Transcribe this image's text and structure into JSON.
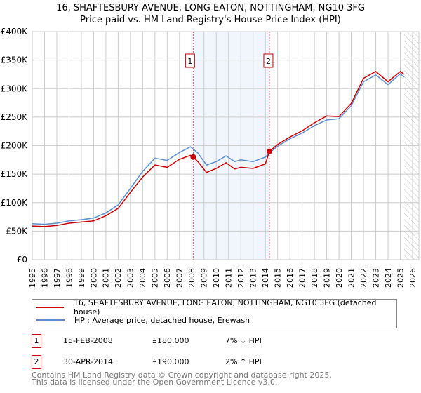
{
  "chart_data": {
    "type": "line",
    "title": "16, SHAFTESBURY AVENUE, LONG EATON, NOTTINGHAM, NG10 3FG",
    "subtitle": "Price paid vs. HM Land Registry's House Price Index (HPI)",
    "xlim": [
      1995,
      2026
    ],
    "ylim": [
      0,
      400000
    ],
    "yticks": [
      0,
      50000,
      100000,
      150000,
      200000,
      250000,
      300000,
      350000,
      400000
    ],
    "ytick_labels": [
      "£0",
      "£50K",
      "£100K",
      "£150K",
      "£200K",
      "£250K",
      "£300K",
      "£350K",
      "£400K"
    ],
    "xticks": [
      1995,
      1996,
      1997,
      1998,
      1999,
      2000,
      2001,
      2002,
      2003,
      2004,
      2005,
      2006,
      2007,
      2008,
      2009,
      2010,
      2011,
      2012,
      2013,
      2014,
      2015,
      2016,
      2017,
      2018,
      2019,
      2020,
      2021,
      2022,
      2023,
      2024,
      2025,
      2026
    ],
    "grid": true,
    "shaded_period": [
      2008.12,
      2014.33
    ],
    "forecast_hatch_from": 2025.3,
    "series": [
      {
        "name": "16, SHAFTESBURY AVENUE, LONG EATON, NOTTINGHAM, NG10 3FG (detached house)",
        "color": "#cc0000",
        "x": [
          1995,
          1996,
          1997,
          1998,
          1999,
          2000,
          2001,
          2002,
          2003,
          2004,
          2005,
          2006,
          2007,
          2007.9,
          2008.12,
          2008.5,
          2009.2,
          2010,
          2010.8,
          2011.5,
          2012,
          2013,
          2014,
          2014.33,
          2015,
          2016,
          2017,
          2018,
          2019,
          2020,
          2021,
          2022,
          2023,
          2024,
          2025,
          2025.3
        ],
        "y": [
          59000,
          58000,
          60000,
          64000,
          66000,
          68000,
          77000,
          90000,
          118000,
          145000,
          166000,
          162000,
          176000,
          183000,
          180000,
          172000,
          153000,
          160000,
          170000,
          159000,
          162000,
          160000,
          168000,
          190000,
          202000,
          215000,
          226000,
          240000,
          252000,
          251000,
          274000,
          318000,
          330000,
          312000,
          330000,
          325000
        ]
      },
      {
        "name": "HPI: Average price, detached house, Erewash",
        "color": "#5b8fd0",
        "x": [
          1995,
          1996,
          1997,
          1998,
          1999,
          2000,
          2001,
          2002,
          2003,
          2004,
          2005,
          2006,
          2007,
          2007.9,
          2008.12,
          2008.5,
          2009.2,
          2010,
          2010.8,
          2011.5,
          2012,
          2013,
          2014,
          2014.33,
          2015,
          2016,
          2017,
          2018,
          2019,
          2020,
          2021,
          2022,
          2023,
          2024,
          2025,
          2025.3
        ],
        "y": [
          63000,
          62000,
          64000,
          68000,
          70000,
          73000,
          82000,
          96000,
          125000,
          155000,
          178000,
          174000,
          188000,
          198000,
          194000,
          187000,
          166000,
          172000,
          182000,
          172000,
          175000,
          172000,
          180000,
          187000,
          199000,
          212000,
          222000,
          235000,
          245000,
          247000,
          270000,
          312000,
          324000,
          307000,
          326000,
          320000
        ]
      }
    ],
    "sales": [
      {
        "num": "1",
        "date": "15-FEB-2008",
        "price": "£180,000",
        "x": 2008.12,
        "y": 180000,
        "hpi": "7% ↓ HPI"
      },
      {
        "num": "2",
        "date": "30-APR-2014",
        "price": "£190,000",
        "x": 2014.33,
        "y": 190000,
        "hpi": "2% ↑ HPI"
      }
    ]
  },
  "footer": {
    "line1": "Contains HM Land Registry data © Crown copyright and database right 2025.",
    "line2": "This data is licensed under the Open Government Licence v3.0."
  }
}
